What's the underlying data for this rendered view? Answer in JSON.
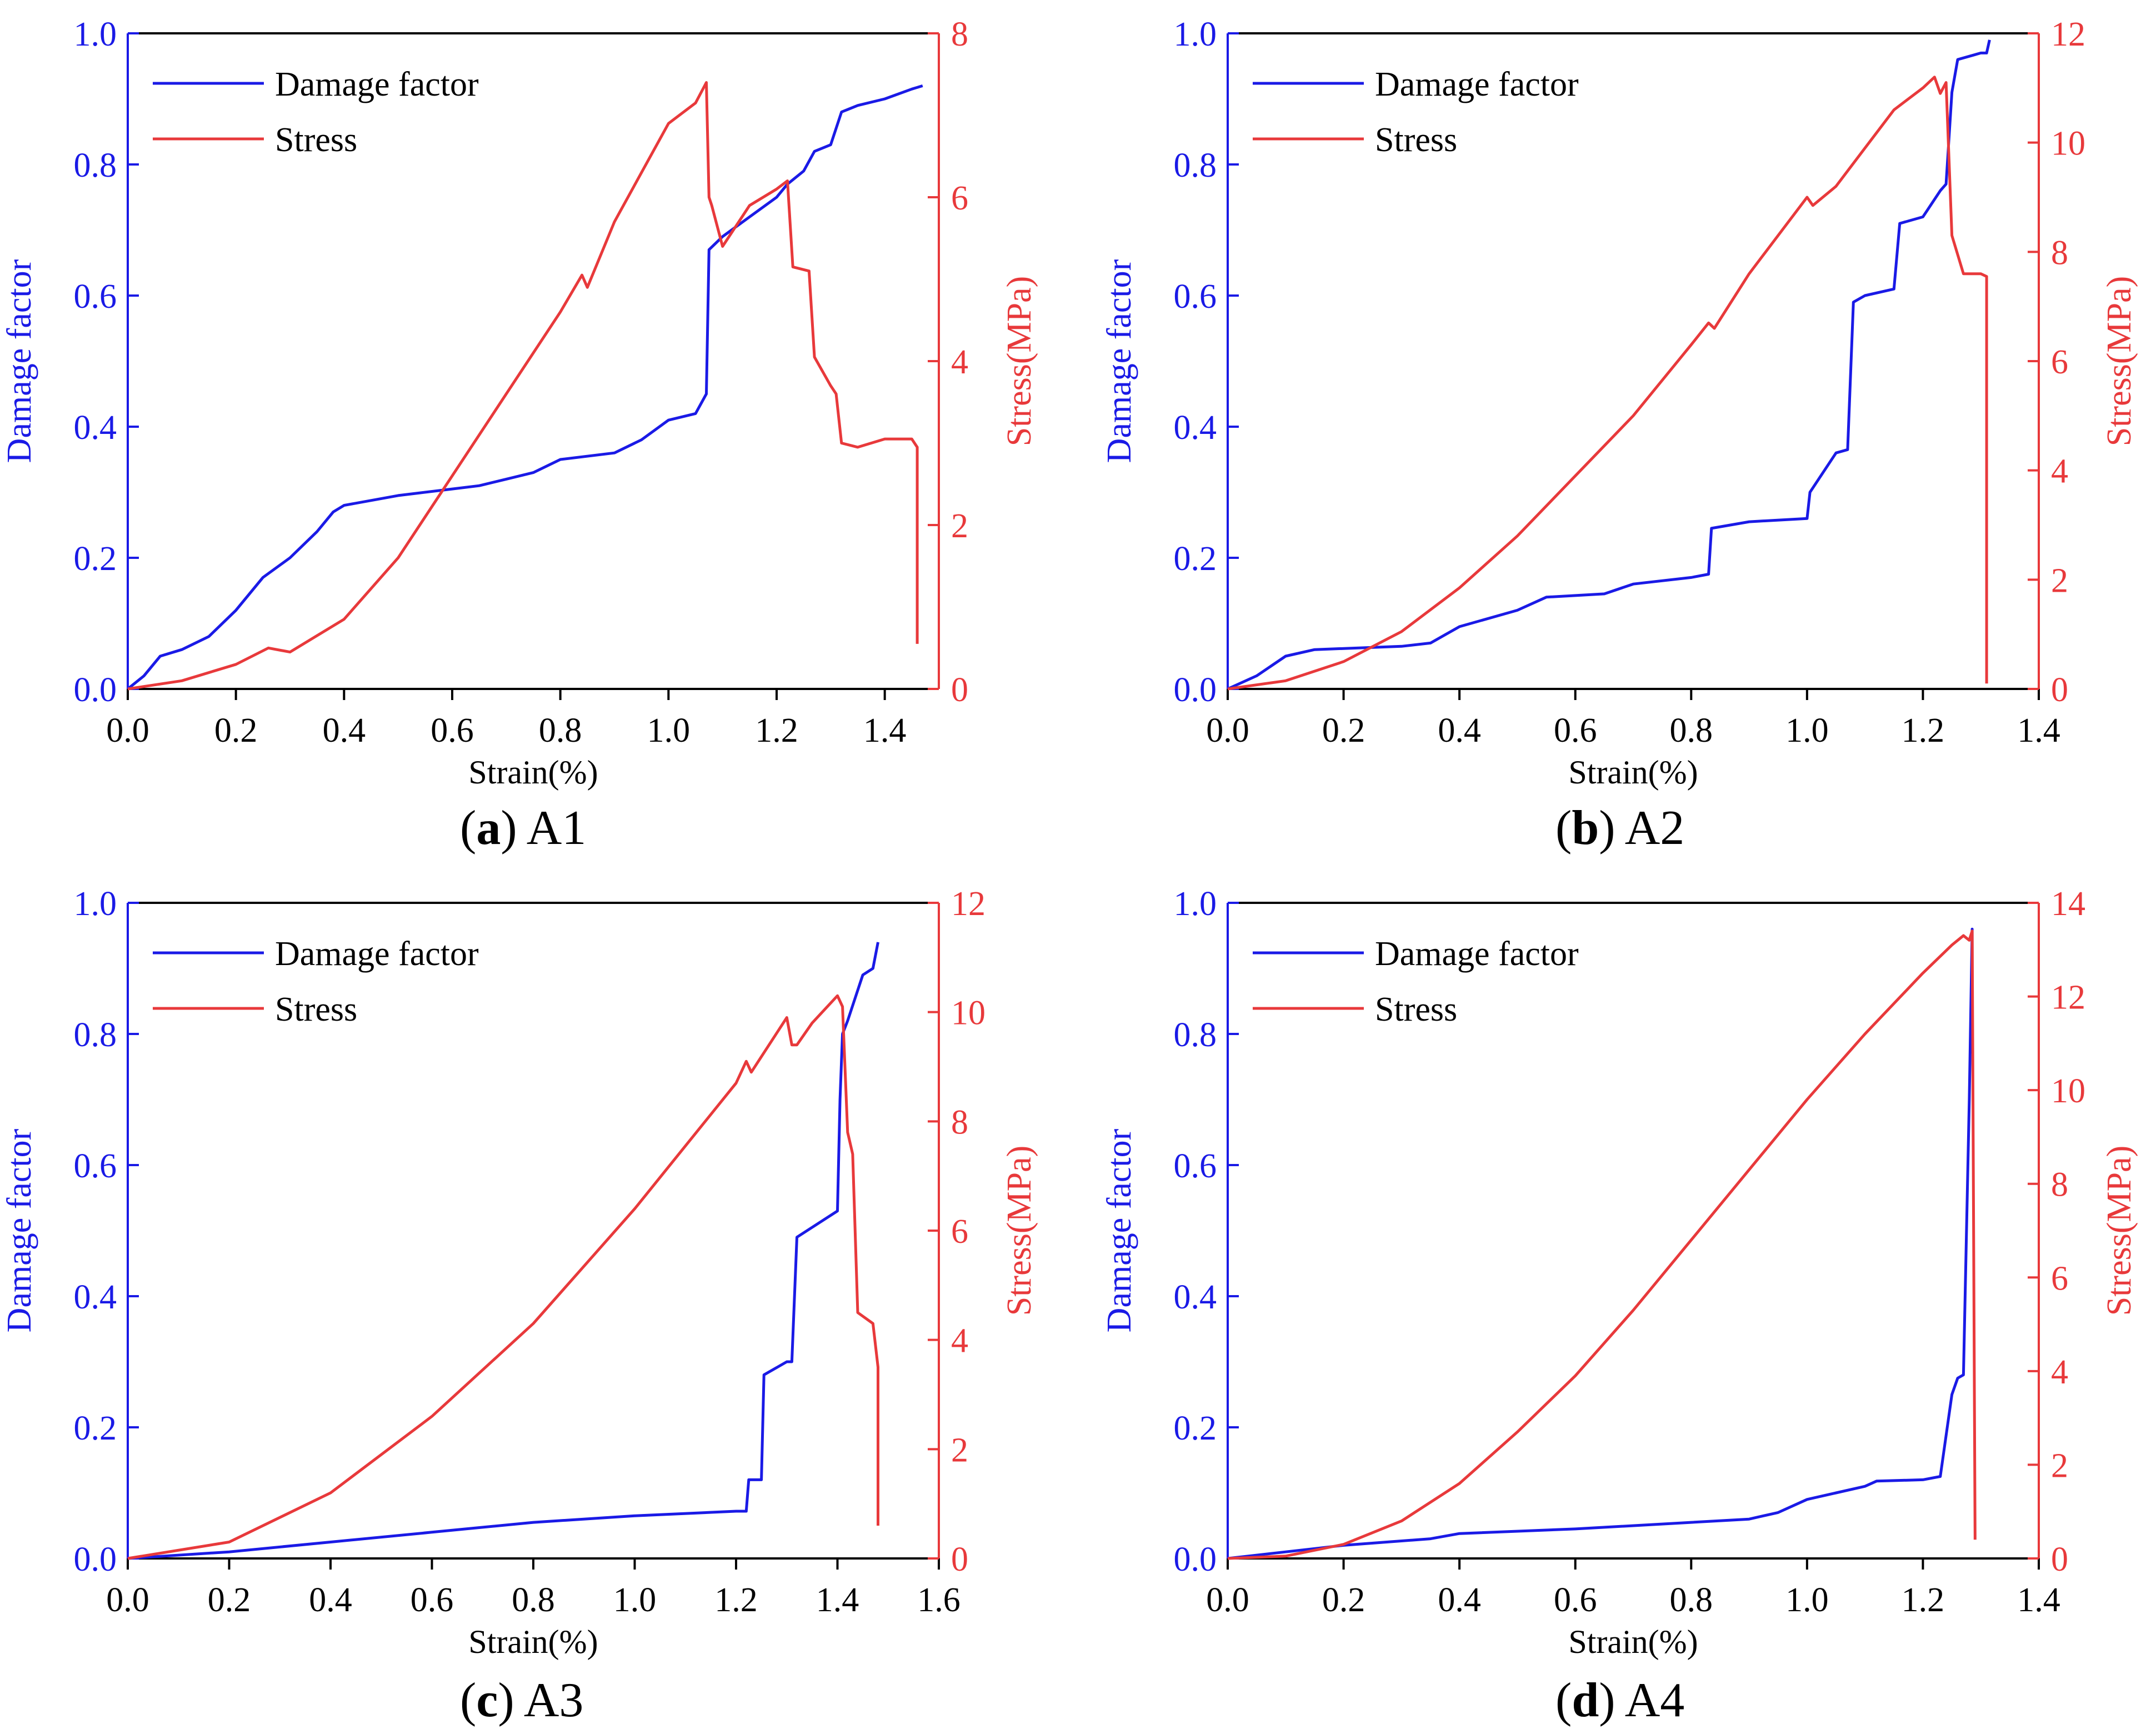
{
  "chart_data": [
    {
      "type": "line",
      "panel_letter": "a",
      "panel_name": "A1",
      "xlabel": "Strain(%)",
      "ylabel_left": "Damage factor",
      "ylabel_right": "Stress(MPa)",
      "xlim": [
        0,
        1.5
      ],
      "xticks": [
        "0.0",
        "0.2",
        "0.4",
        "0.6",
        "0.8",
        "1.0",
        "1.2",
        "1.4"
      ],
      "ylim_left": [
        0,
        1.0
      ],
      "yticks_left": [
        "0.0",
        "0.2",
        "0.4",
        "0.6",
        "0.8",
        "1.0"
      ],
      "ylim_right": [
        0,
        8
      ],
      "yticks_right": [
        "0",
        "2",
        "4",
        "6",
        "8"
      ],
      "legend": [
        "Damage factor",
        "Stress"
      ],
      "colors": {
        "damage": "#1a1ae6",
        "stress": "#e8393b"
      },
      "series": [
        {
          "name": "Damage factor",
          "axis": "left",
          "x": [
            0,
            0.03,
            0.06,
            0.1,
            0.15,
            0.2,
            0.25,
            0.3,
            0.35,
            0.38,
            0.4,
            0.5,
            0.6,
            0.65,
            0.7,
            0.75,
            0.8,
            0.9,
            0.95,
            1.0,
            1.05,
            1.07,
            1.075,
            1.1,
            1.15,
            1.2,
            1.22,
            1.25,
            1.27,
            1.3,
            1.32,
            1.35,
            1.4,
            1.45,
            1.47
          ],
          "y": [
            0,
            0.02,
            0.05,
            0.06,
            0.08,
            0.12,
            0.17,
            0.2,
            0.24,
            0.27,
            0.28,
            0.295,
            0.305,
            0.31,
            0.32,
            0.33,
            0.35,
            0.36,
            0.38,
            0.41,
            0.42,
            0.45,
            0.67,
            0.69,
            0.72,
            0.75,
            0.77,
            0.79,
            0.82,
            0.83,
            0.88,
            0.89,
            0.9,
            0.915,
            0.92
          ]
        },
        {
          "name": "Stress",
          "axis": "right",
          "x": [
            0,
            0.1,
            0.2,
            0.26,
            0.3,
            0.4,
            0.5,
            0.6,
            0.7,
            0.8,
            0.84,
            0.85,
            0.9,
            1.0,
            1.05,
            1.07,
            1.075,
            1.08,
            1.1,
            1.15,
            1.2,
            1.22,
            1.23,
            1.26,
            1.27,
            1.3,
            1.31,
            1.32,
            1.35,
            1.4,
            1.45,
            1.46,
            1.46
          ],
          "y": [
            0,
            0.1,
            0.3,
            0.5,
            0.45,
            0.85,
            1.6,
            2.6,
            3.6,
            4.6,
            5.05,
            4.9,
            5.7,
            6.9,
            7.15,
            7.4,
            6.0,
            5.9,
            5.4,
            5.9,
            6.1,
            6.2,
            5.15,
            5.1,
            4.05,
            3.7,
            3.6,
            3.0,
            2.95,
            3.05,
            3.05,
            2.95,
            0.55
          ]
        }
      ]
    },
    {
      "type": "line",
      "panel_letter": "b",
      "panel_name": "A2",
      "xlabel": "Strain(%)",
      "ylabel_left": "Damage factor",
      "ylabel_right": "Stress(MPa)",
      "xlim": [
        0,
        1.4
      ],
      "xticks": [
        "0.0",
        "0.2",
        "0.4",
        "0.6",
        "0.8",
        "1.0",
        "1.2",
        "1.4"
      ],
      "ylim_left": [
        0,
        1.0
      ],
      "yticks_left": [
        "0.0",
        "0.2",
        "0.4",
        "0.6",
        "0.8",
        "1.0"
      ],
      "ylim_right": [
        0,
        12
      ],
      "yticks_right": [
        "0",
        "2",
        "4",
        "6",
        "8",
        "10",
        "12"
      ],
      "legend": [
        "Damage factor",
        "Stress"
      ],
      "colors": {
        "damage": "#1a1ae6",
        "stress": "#e8393b"
      },
      "series": [
        {
          "name": "Damage factor",
          "axis": "left",
          "x": [
            0,
            0.05,
            0.1,
            0.15,
            0.3,
            0.35,
            0.4,
            0.5,
            0.55,
            0.65,
            0.7,
            0.8,
            0.83,
            0.835,
            0.9,
            1.0,
            1.005,
            1.05,
            1.07,
            1.08,
            1.1,
            1.15,
            1.16,
            1.2,
            1.23,
            1.24,
            1.25,
            1.26,
            1.3,
            1.31,
            1.315
          ],
          "y": [
            0,
            0.02,
            0.05,
            0.06,
            0.065,
            0.07,
            0.095,
            0.12,
            0.14,
            0.145,
            0.16,
            0.17,
            0.175,
            0.245,
            0.255,
            0.26,
            0.3,
            0.36,
            0.365,
            0.59,
            0.6,
            0.61,
            0.71,
            0.72,
            0.76,
            0.77,
            0.91,
            0.96,
            0.97,
            0.97,
            0.99
          ]
        },
        {
          "name": "Stress",
          "axis": "right",
          "x": [
            0,
            0.1,
            0.2,
            0.3,
            0.4,
            0.5,
            0.6,
            0.7,
            0.8,
            0.83,
            0.84,
            0.9,
            1.0,
            1.01,
            1.05,
            1.1,
            1.15,
            1.2,
            1.22,
            1.23,
            1.24,
            1.25,
            1.27,
            1.3,
            1.31,
            1.31
          ],
          "y": [
            0,
            0.15,
            0.5,
            1.05,
            1.85,
            2.8,
            3.9,
            5.0,
            6.3,
            6.7,
            6.6,
            7.6,
            9.0,
            8.85,
            9.2,
            9.9,
            10.6,
            11.0,
            11.2,
            10.9,
            11.1,
            8.3,
            7.6,
            7.6,
            7.55,
            0.1
          ]
        }
      ]
    },
    {
      "type": "line",
      "panel_letter": "c",
      "panel_name": "A3",
      "xlabel": "Strain(%)",
      "ylabel_left": "Damage factor",
      "ylabel_right": "Stress(MPa)",
      "xlim": [
        0,
        1.6
      ],
      "xticks": [
        "0.0",
        "0.2",
        "0.4",
        "0.6",
        "0.8",
        "1.0",
        "1.2",
        "1.4",
        "1.6"
      ],
      "ylim_left": [
        0,
        1.0
      ],
      "yticks_left": [
        "0.0",
        "0.2",
        "0.4",
        "0.6",
        "0.8",
        "1.0"
      ],
      "ylim_right": [
        0,
        12
      ],
      "yticks_right": [
        "0",
        "2",
        "4",
        "6",
        "8",
        "10",
        "12"
      ],
      "legend": [
        "Damage factor",
        "Stress"
      ],
      "colors": {
        "damage": "#1a1ae6",
        "stress": "#e8393b"
      },
      "series": [
        {
          "name": "Damage factor",
          "axis": "left",
          "x": [
            0,
            0.2,
            0.4,
            0.6,
            0.8,
            1.0,
            1.2,
            1.22,
            1.225,
            1.25,
            1.255,
            1.3,
            1.31,
            1.32,
            1.4,
            1.405,
            1.41,
            1.42,
            1.45,
            1.47,
            1.48
          ],
          "y": [
            0,
            0.01,
            0.025,
            0.04,
            0.055,
            0.065,
            0.072,
            0.072,
            0.12,
            0.12,
            0.28,
            0.3,
            0.3,
            0.49,
            0.53,
            0.7,
            0.8,
            0.82,
            0.89,
            0.9,
            0.94
          ]
        },
        {
          "name": "Stress",
          "axis": "right",
          "x": [
            0,
            0.2,
            0.4,
            0.6,
            0.8,
            1.0,
            1.2,
            1.22,
            1.23,
            1.3,
            1.31,
            1.32,
            1.35,
            1.4,
            1.41,
            1.42,
            1.43,
            1.44,
            1.47,
            1.48,
            1.48
          ],
          "y": [
            0,
            0.3,
            1.2,
            2.6,
            4.3,
            6.4,
            8.7,
            9.1,
            8.9,
            9.9,
            9.4,
            9.4,
            9.8,
            10.3,
            10.1,
            7.8,
            7.4,
            4.5,
            4.3,
            3.5,
            0.6
          ]
        }
      ]
    },
    {
      "type": "line",
      "panel_letter": "d",
      "panel_name": "A4",
      "xlabel": "Strain(%)",
      "ylabel_left": "Damage factor",
      "ylabel_right": "Stress(MPa)",
      "xlim": [
        0,
        1.4
      ],
      "xticks": [
        "0.0",
        "0.2",
        "0.4",
        "0.6",
        "0.8",
        "1.0",
        "1.2",
        "1.4"
      ],
      "ylim_left": [
        0,
        1.0
      ],
      "yticks_left": [
        "0.0",
        "0.2",
        "0.4",
        "0.6",
        "0.8",
        "1.0"
      ],
      "ylim_right": [
        0,
        14
      ],
      "yticks_right": [
        "0",
        "2",
        "4",
        "6",
        "8",
        "10",
        "12",
        "14"
      ],
      "legend": [
        "Damage factor",
        "Stress"
      ],
      "colors": {
        "damage": "#1a1ae6",
        "stress": "#e8393b"
      },
      "series": [
        {
          "name": "Damage factor",
          "axis": "left",
          "x": [
            0,
            0.1,
            0.15,
            0.2,
            0.35,
            0.4,
            0.6,
            0.8,
            0.9,
            0.95,
            1.0,
            1.05,
            1.1,
            1.12,
            1.2,
            1.23,
            1.25,
            1.26,
            1.27,
            1.28,
            1.285,
            1.285
          ],
          "y": [
            0,
            0.01,
            0.015,
            0.02,
            0.03,
            0.038,
            0.045,
            0.055,
            0.06,
            0.07,
            0.09,
            0.1,
            0.11,
            0.118,
            0.12,
            0.125,
            0.25,
            0.275,
            0.28,
            0.7,
            0.96,
            0.77
          ]
        },
        {
          "name": "Stress",
          "axis": "right",
          "x": [
            0,
            0.1,
            0.2,
            0.3,
            0.4,
            0.5,
            0.6,
            0.7,
            0.8,
            0.9,
            1.0,
            1.1,
            1.2,
            1.25,
            1.27,
            1.28,
            1.285,
            1.29,
            1.29
          ],
          "y": [
            0,
            0.05,
            0.3,
            0.8,
            1.6,
            2.7,
            3.9,
            5.3,
            6.8,
            8.3,
            9.8,
            11.2,
            12.5,
            13.1,
            13.3,
            13.2,
            13.4,
            0.5,
            0.4
          ]
        }
      ]
    }
  ]
}
